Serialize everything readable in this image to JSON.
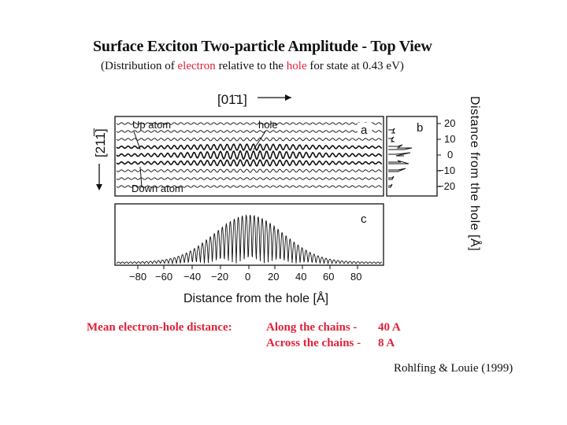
{
  "title": {
    "main": "Surface Exciton Two-particle Amplitude - Top View",
    "sub_prefix": "(Distribution of ",
    "sub_electron": "electron",
    "sub_middle": " relative to the ",
    "sub_hole": "hole",
    "sub_suffix": " for state at 0.43 eV)"
  },
  "figure": {
    "direction_top": "[01̄1]",
    "direction_left": "[211̅]",
    "label_up_atom": "Up atom",
    "label_hole": "hole",
    "label_down_atom": "Down atom",
    "panel_a": "a",
    "panel_b": "b",
    "panel_c": "c",
    "y_ticks": [
      "20",
      "10",
      "0",
      "−10",
      "−20"
    ],
    "y_axis_label": "Distance from the hole [Å]",
    "x_ticks": [
      "−80",
      "−60",
      "−40",
      "−20",
      "0",
      "20",
      "40",
      "60",
      "80"
    ],
    "x_axis_label": "Distance from the hole [Å]"
  },
  "summary": {
    "mean_label": "Mean electron-hole distance:",
    "along_label": "Along the chains -",
    "along_value": "40 A",
    "across_label": "Across the chains -",
    "across_value": "8 A"
  },
  "citation": "Rohlfing & Louie (1999)",
  "colors": {
    "accent": "#e0223a",
    "ink": "#111111"
  }
}
